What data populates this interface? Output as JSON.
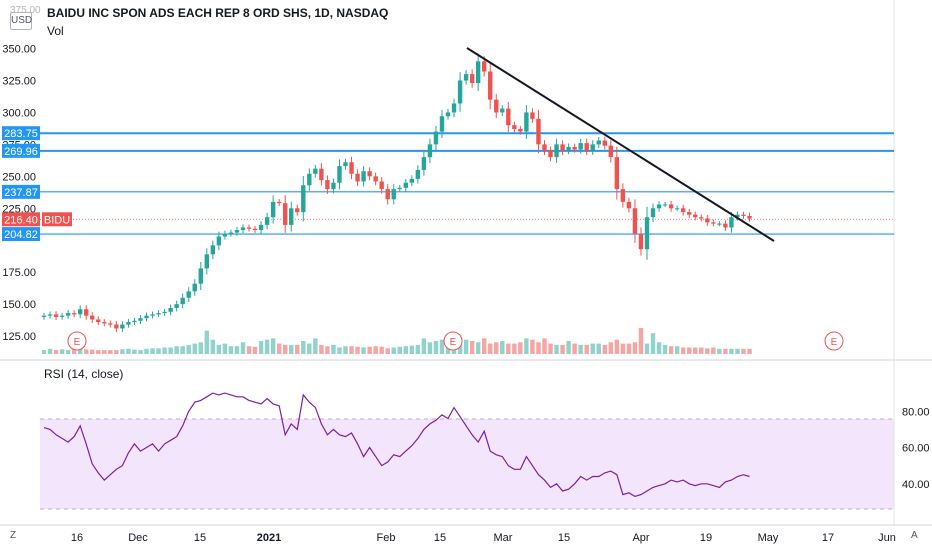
{
  "header": {
    "title": "BAIDU INC SPON ADS EACH REP 8 ORD SHS, 1D, NASDAQ",
    "vol_label": "Vol",
    "currency": "USD",
    "top_price_cut": "375.00"
  },
  "rsi": {
    "label": "RSI (14, close)",
    "ticks": [
      "80.00",
      "60.00",
      "40.00"
    ]
  },
  "bottom_bar": {
    "z_label": "Z",
    "a_label": "A"
  },
  "colors": {
    "up": "#26a69a",
    "down": "#ef5350",
    "vol_up": "#8fd3ca",
    "vol_down": "#f6a5a3",
    "hline": "#2196f3",
    "trend": "#131722",
    "rsi_line": "#7b1fa2",
    "rsi_band": "#f3e5fb"
  },
  "chart_data": {
    "type": "candlestick",
    "y_ticks": [
      "350.00",
      "325.00",
      "300.00",
      "275.00",
      "250.00",
      "225.00",
      "175.00",
      "150.00",
      "125.00"
    ],
    "x_ticks": [
      "16",
      "Dec",
      "15",
      "2021",
      "Feb",
      "15",
      "Mar",
      "15",
      "Apr",
      "19",
      "May",
      "17",
      "Jun"
    ],
    "price_labels": [
      {
        "text": "283.75",
        "value": 283.75
      },
      {
        "text": "269.96",
        "value": 269.96
      },
      {
        "text": "237.87",
        "value": 237.87
      },
      {
        "text": "204.82",
        "value": 204.82
      }
    ],
    "last_price": {
      "text": "216.40",
      "ticker": "BIDU",
      "value": 216.4
    },
    "earnings_markers": [
      "E",
      "E",
      "E"
    ],
    "close": [
      141,
      142,
      140,
      141,
      143,
      142,
      146,
      141,
      138,
      136,
      135,
      134,
      131,
      134,
      136,
      137,
      139,
      141,
      142,
      143,
      144,
      147,
      150,
      155,
      160,
      166,
      178,
      189,
      196,
      203,
      205,
      206,
      208,
      210,
      209,
      208,
      212,
      218,
      230,
      229,
      212,
      225,
      222,
      243,
      252,
      256,
      247,
      240,
      245,
      258,
      261,
      252,
      246,
      254,
      250,
      246,
      240,
      232,
      240,
      241,
      245,
      248,
      255,
      265,
      275,
      285,
      297,
      300,
      307,
      325,
      330,
      323,
      340,
      332,
      310,
      300,
      303,
      290,
      287,
      285,
      300,
      295,
      275,
      270,
      265,
      275,
      270,
      273,
      271,
      276,
      270,
      275,
      278,
      274,
      265,
      240,
      230,
      225,
      205,
      193,
      218,
      225,
      228,
      228,
      225,
      225,
      222,
      220,
      218,
      217,
      214,
      213,
      213,
      210,
      218,
      220,
      219,
      217
    ],
    "ylim": [
      111,
      377
    ],
    "volume_relative": [
      0.15,
      0.2,
      0.15,
      0.18,
      0.15,
      0.18,
      0.2,
      0.18,
      0.17,
      0.15,
      0.15,
      0.15,
      0.15,
      0.18,
      0.2,
      0.17,
      0.15,
      0.2,
      0.22,
      0.22,
      0.25,
      0.25,
      0.3,
      0.3,
      0.35,
      0.4,
      0.45,
      0.9,
      0.55,
      0.35,
      0.4,
      0.3,
      0.3,
      0.45,
      0.3,
      0.28,
      0.5,
      0.55,
      0.6,
      0.4,
      0.35,
      0.35,
      0.35,
      0.5,
      0.4,
      0.6,
      0.35,
      0.3,
      0.35,
      0.25,
      0.3,
      0.3,
      0.28,
      0.25,
      0.28,
      0.3,
      0.28,
      0.22,
      0.25,
      0.28,
      0.3,
      0.32,
      0.35,
      0.6,
      0.45,
      0.5,
      0.55,
      0.4,
      0.75,
      0.65,
      0.55,
      0.5,
      0.45,
      0.6,
      0.4,
      0.45,
      0.5,
      0.4,
      0.4,
      0.45,
      0.6,
      0.55,
      0.45,
      0.6,
      0.4,
      0.35,
      0.35,
      0.5,
      0.4,
      0.35,
      0.35,
      0.4,
      0.4,
      0.35,
      0.45,
      0.55,
      0.4,
      0.4,
      0.45,
      1.0,
      0.4,
      0.8,
      0.45,
      0.35,
      0.3,
      0.3,
      0.25,
      0.25,
      0.25,
      0.25,
      0.22,
      0.25,
      0.2,
      0.2,
      0.2,
      0.2,
      0.2,
      0.2
    ],
    "rsi": [
      71,
      70,
      67,
      65,
      63,
      66,
      72,
      62,
      51,
      46,
      42,
      45,
      48,
      50,
      57,
      62,
      58,
      60,
      62,
      58,
      62,
      64,
      66,
      72,
      80,
      85,
      86,
      88,
      90,
      89,
      90,
      89,
      88,
      88,
      86,
      85,
      84,
      87,
      84,
      83,
      67,
      73,
      70,
      89,
      85,
      82,
      73,
      67,
      70,
      67,
      66,
      68,
      62,
      55,
      60,
      55,
      50,
      52,
      56,
      55,
      58,
      61,
      65,
      70,
      73,
      75,
      78,
      76,
      82,
      77,
      72,
      67,
      63,
      69,
      58,
      56,
      55,
      50,
      48,
      48,
      55,
      50,
      45,
      42,
      38,
      40,
      36,
      37,
      40,
      44,
      42,
      44,
      44,
      46,
      47,
      45,
      34,
      35,
      33,
      34,
      36,
      38,
      39,
      40,
      42,
      41,
      42,
      40,
      39,
      40,
      40,
      39,
      38,
      41,
      42,
      44,
      45,
      44
    ],
    "rsi_band": [
      30,
      70
    ],
    "rsi_ylim": [
      20,
      100
    ]
  }
}
